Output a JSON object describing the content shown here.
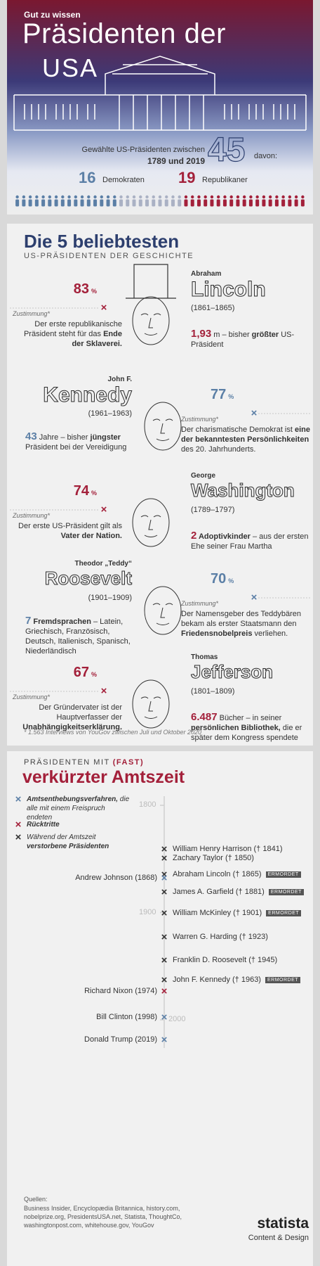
{
  "header": {
    "kicker": "Gut zu wissen",
    "title_line1": "Präsidenten der",
    "title_line2": "USA",
    "elected_text": "Gewählte US-Präsidenten zwischen",
    "elected_period": "1789 und 2019",
    "total": 45,
    "davon": "davon:",
    "democrats": {
      "count": 16,
      "label": "Demokraten",
      "color": "#5b7fa6"
    },
    "republicans": {
      "count": 19,
      "label": "Republikaner",
      "color": "#a3203a"
    }
  },
  "popular": {
    "title": "Die 5 beliebtesten",
    "subtitle": "US-PRÄSIDENTEN DER GESCHICHTE",
    "approval_label": "Zustimmung*",
    "percent_sign": "%",
    "presidents": [
      {
        "first": "Abraham",
        "last": "Lincoln",
        "years": "(1861–1865)",
        "approval": 83,
        "color": "#a3203a",
        "approval_text": [
          {
            "text": "Der erste republikanische Präsident steht für das ",
            "style": ""
          },
          {
            "text": "Ende der Sklaverei.",
            "style": "bold"
          }
        ],
        "fact": [
          {
            "text": "1,93",
            "style": "num"
          },
          {
            "text": " m – bisher ",
            "style": ""
          },
          {
            "text": "größter",
            "style": "bold"
          },
          {
            "text": " US-Präsident",
            "style": ""
          }
        ]
      },
      {
        "first": "John F.",
        "last": "Kennedy",
        "years": "(1961–1963)",
        "approval": 77,
        "color": "#5b7fa6",
        "approval_text": [
          {
            "text": "Der charismatische Demokrat ist ",
            "style": ""
          },
          {
            "text": "eine der bekanntesten Persönlichkeiten",
            "style": "bold"
          },
          {
            "text": " des 20. Jahrhunderts.",
            "style": ""
          }
        ],
        "fact": [
          {
            "text": "43",
            "style": "num"
          },
          {
            "text": " Jahre – bisher ",
            "style": ""
          },
          {
            "text": "jüngster",
            "style": "bold"
          },
          {
            "text": " Präsident bei der Vereidigung",
            "style": ""
          }
        ]
      },
      {
        "first": "George",
        "last": "Washington",
        "years": "(1789–1797)",
        "approval": 74,
        "color": "#a3203a",
        "approval_text": [
          {
            "text": "Der erste US-Präsident gilt als ",
            "style": ""
          },
          {
            "text": "Vater der Nation.",
            "style": "bold"
          }
        ],
        "fact": [
          {
            "text": "2",
            "style": "num"
          },
          {
            "text": " Adoptivkinder",
            "style": "bold"
          },
          {
            "text": " – aus der ersten Ehe seiner Frau Martha",
            "style": ""
          }
        ]
      },
      {
        "first": "Theodor „Teddy“",
        "last": "Roosevelt",
        "years": "(1901–1909)",
        "approval": 70,
        "color": "#5b7fa6",
        "approval_text": [
          {
            "text": "Der Namensgeber des Teddybären bekam als erster Staatsmann den ",
            "style": ""
          },
          {
            "text": "Friedensnobelpreis",
            "style": "bold"
          },
          {
            "text": " verliehen.",
            "style": ""
          }
        ],
        "fact": [
          {
            "text": "7",
            "style": "num"
          },
          {
            "text": " Fremdsprachen",
            "style": "bold"
          },
          {
            "text": " – Latein, Griechisch, Französisch, Deutsch, Italienisch, Spanisch, Niederländisch",
            "style": ""
          }
        ]
      },
      {
        "first": "Thomas",
        "last": "Jefferson",
        "years": "(1801–1809)",
        "approval": 67,
        "color": "#a3203a",
        "approval_text": [
          {
            "text": "Der Gründervater ist der Hauptverfasser der ",
            "style": ""
          },
          {
            "text": "Unabhängigkeitserklärung.",
            "style": "bold"
          }
        ],
        "fact": [
          {
            "text": "6.487",
            "style": "num"
          },
          {
            "text": " Bücher – in seiner ",
            "style": ""
          },
          {
            "text": "persönlichen Bibliothek,",
            "style": "bold"
          },
          {
            "text": " die er später dem Kongress spendete",
            "style": ""
          }
        ]
      }
    ],
    "footnote": "* 1.563 Interviews von YouGov zwischen Juli und Oktober 2020"
  },
  "shortened": {
    "kicker": "PRÄSIDENTEN MIT",
    "kicker_highlight": "(FAST)",
    "title": "verkürzter Amtszeit",
    "legend": [
      {
        "color": "#5b7fa6",
        "text": [
          {
            "text": "Amtsenthebungsverfahren,",
            "style": "bold"
          },
          {
            "text": " die alle mit einem Freispruch endeten",
            "style": ""
          }
        ]
      },
      {
        "color": "#a3203a",
        "text": [
          {
            "text": "Rücktritte",
            "style": "bold"
          }
        ]
      },
      {
        "color": "#333333",
        "text": [
          {
            "text": "Während der Amtszeit ",
            "style": ""
          },
          {
            "text": "verstorbene Präsidenten",
            "style": "bold"
          }
        ]
      }
    ],
    "badge": "ERMORDET",
    "yticks": [
      1800,
      1900,
      2000
    ],
    "events": [
      {
        "label": "William Henry Harrison († 1841)",
        "year": 1841,
        "kind": 2,
        "assassinated": false
      },
      {
        "label": "Zachary Taylor († 1850)",
        "year": 1850,
        "kind": 2,
        "assassinated": false
      },
      {
        "label": "Abraham Lincoln († 1865)",
        "year": 1865,
        "kind": 2,
        "assassinated": true
      },
      {
        "label": "Andrew Johnson (1868)",
        "year": 1868,
        "kind": 0,
        "assassinated": false
      },
      {
        "label": "James A. Garfield († 1881)",
        "year": 1881,
        "kind": 2,
        "assassinated": true
      },
      {
        "label": "William McKinley († 1901)",
        "year": 1901,
        "kind": 2,
        "assassinated": true
      },
      {
        "label": "Warren G. Harding († 1923)",
        "year": 1923,
        "kind": 2,
        "assassinated": false
      },
      {
        "label": "Franklin D. Roosevelt († 1945)",
        "year": 1945,
        "kind": 2,
        "assassinated": false
      },
      {
        "label": "John F. Kennedy († 1963)",
        "year": 1963,
        "kind": 2,
        "assassinated": true
      },
      {
        "label": "Richard Nixon (1974)",
        "year": 1974,
        "kind": 1,
        "assassinated": false
      },
      {
        "label": "Bill Clinton (1998)",
        "year": 1998,
        "kind": 0,
        "assassinated": false
      },
      {
        "label": "Donald Trump (2019)",
        "year": 2019,
        "kind": 0,
        "assassinated": false
      }
    ]
  },
  "footer": {
    "sources_title": "Quellen:",
    "sources": [
      "Business Insider, Encyclopædia Britannica, history.com,",
      "nobelprize.org, PresidentsUSA.net, Statista, ThoughtCo,",
      "washingtonpost.com, whitehouse.gov, YouGov"
    ],
    "logo": "statista",
    "logo_sub": "Content & Design"
  }
}
